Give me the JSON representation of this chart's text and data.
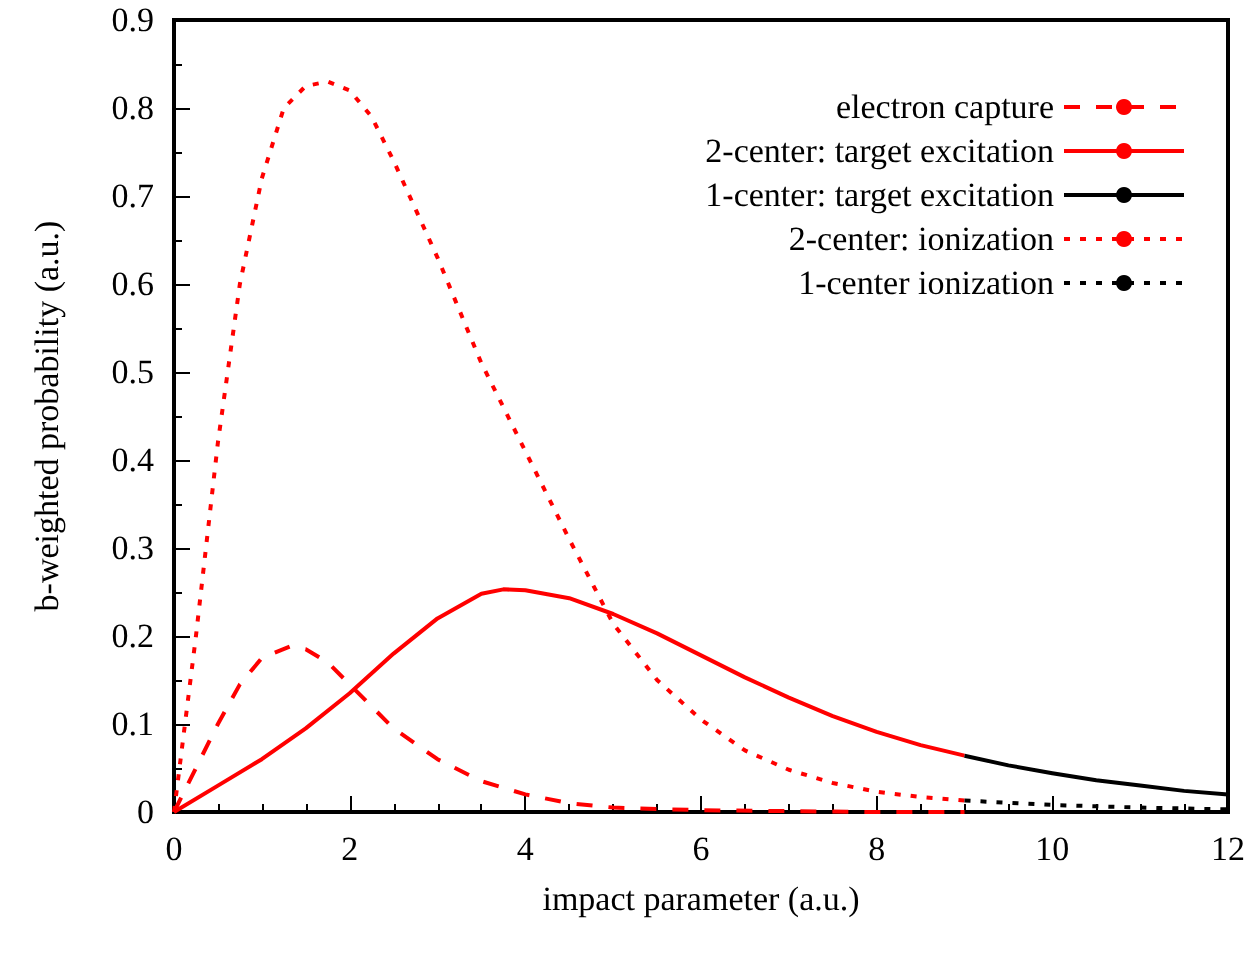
{
  "chart_data": {
    "type": "line",
    "xlabel": "impact parameter (a.u.)",
    "ylabel": "b-weighted probability (a.u.)",
    "xlim": [
      0,
      12
    ],
    "xticks": [
      0,
      2,
      4,
      6,
      8,
      10,
      12
    ],
    "ylim": [
      0,
      0.9
    ],
    "yticks": [
      0,
      0.1,
      0.2,
      0.3,
      0.4,
      0.5,
      0.6,
      0.7,
      0.8,
      0.9
    ],
    "grid": false,
    "legend": "top right",
    "marker": "none",
    "series": [
      {
        "name": "electron capture",
        "color": "#ff0000",
        "line_style": "dashed",
        "x": [
          0,
          0.25,
          0.5,
          0.75,
          1,
          1.32,
          1.5,
          1.75,
          2,
          2.5,
          3,
          3.5,
          4,
          4.5,
          5,
          6,
          7,
          8,
          9
        ],
        "values": [
          0,
          0.05,
          0.1,
          0.145,
          0.175,
          0.188,
          0.185,
          0.17,
          0.145,
          0.095,
          0.06,
          0.035,
          0.02,
          0.01,
          0.005,
          0.002,
          0.001,
          0,
          0
        ]
      },
      {
        "name": "2-center: target excitation",
        "color": "#ff0000",
        "line_style": "solid",
        "x": [
          0,
          0.5,
          1,
          1.5,
          2,
          2.5,
          3,
          3.5,
          3.75,
          4,
          4.5,
          5,
          5.5,
          6,
          6.5,
          7,
          7.5,
          8,
          8.5,
          9
        ],
        "values": [
          0,
          0.03,
          0.06,
          0.095,
          0.135,
          0.18,
          0.22,
          0.248,
          0.253,
          0.252,
          0.243,
          0.225,
          0.203,
          0.178,
          0.153,
          0.13,
          0.109,
          0.091,
          0.076,
          0.064
        ]
      },
      {
        "name": "1-center: target excitation",
        "color": "#000000",
        "line_style": "solid",
        "x": [
          9,
          9.5,
          10,
          10.5,
          11,
          11.5,
          12
        ],
        "values": [
          0.064,
          0.053,
          0.044,
          0.036,
          0.03,
          0.024,
          0.02
        ]
      },
      {
        "name": "2-center: ionization",
        "color": "#ff0000",
        "line_style": "dotted",
        "x": [
          0,
          0.25,
          0.5,
          0.75,
          1,
          1.25,
          1.5,
          1.75,
          2,
          2.25,
          2.5,
          3,
          3.5,
          4,
          4.5,
          5,
          5.5,
          6,
          6.5,
          7,
          7.5,
          8,
          8.5,
          9
        ],
        "values": [
          0,
          0.2,
          0.42,
          0.6,
          0.72,
          0.8,
          0.825,
          0.83,
          0.82,
          0.79,
          0.74,
          0.63,
          0.51,
          0.41,
          0.31,
          0.214,
          0.15,
          0.105,
          0.07,
          0.048,
          0.033,
          0.023,
          0.017,
          0.013
        ]
      },
      {
        "name": "1-center ionization",
        "color": "#000000",
        "line_style": "dotted",
        "x": [
          9,
          10,
          11,
          12
        ],
        "values": [
          0.013,
          0.008,
          0.005,
          0.003
        ]
      }
    ]
  }
}
